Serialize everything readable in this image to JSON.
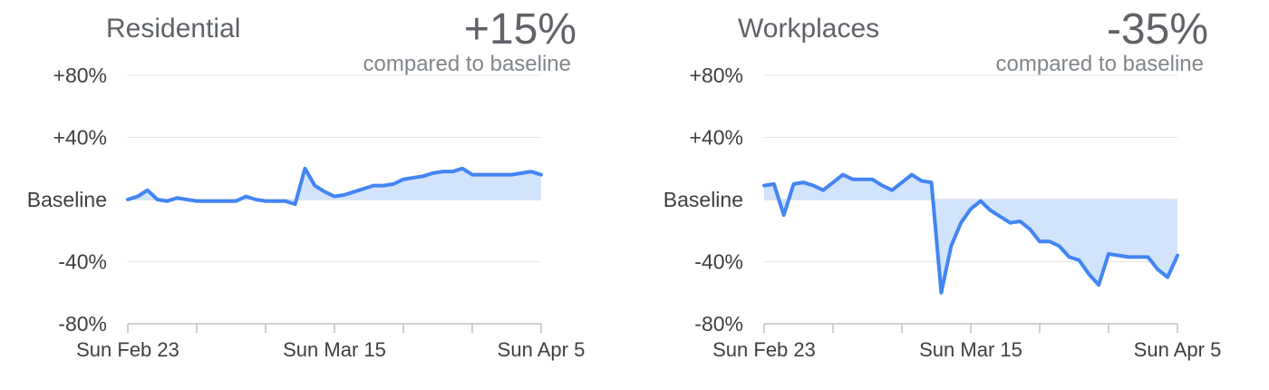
{
  "chart_data": [
    {
      "type": "area",
      "title": "Residential",
      "change": "+15%",
      "subtitle": "compared to baseline",
      "ylim": [
        -80,
        80
      ],
      "yticks": [
        {
          "value": 80,
          "label": "+80%"
        },
        {
          "value": 40,
          "label": "+40%"
        },
        {
          "value": 0,
          "label": "Baseline"
        },
        {
          "value": -40,
          "label": "-40%"
        },
        {
          "value": -80,
          "label": "-80%"
        }
      ],
      "xtick_labels": [
        {
          "index": 0,
          "label": "Sun Feb 23"
        },
        {
          "index": 21,
          "label": "Sun Mar 15"
        },
        {
          "index": 42,
          "label": "Sun Apr 5"
        }
      ],
      "xtick_marks": [
        0,
        7,
        14,
        21,
        28,
        35,
        42
      ],
      "grid": true,
      "color": "#4285f4",
      "fill_color": "#d2e3fc",
      "values": [
        0,
        2,
        6,
        0,
        -1,
        1,
        0,
        -1,
        -1,
        -1,
        -1,
        -1,
        2,
        0,
        -1,
        -1,
        -1,
        -3,
        20,
        9,
        5,
        2,
        3,
        5,
        7,
        9,
        9,
        10,
        13,
        14,
        15,
        17,
        18,
        18,
        20,
        16,
        16,
        16,
        16,
        16,
        17,
        18,
        16
      ]
    },
    {
      "type": "area",
      "title": "Workplaces",
      "change": "-35%",
      "subtitle": "compared to baseline",
      "ylim": [
        -80,
        80
      ],
      "yticks": [
        {
          "value": 80,
          "label": "+80%"
        },
        {
          "value": 40,
          "label": "+40%"
        },
        {
          "value": 0,
          "label": "Baseline"
        },
        {
          "value": -40,
          "label": "-40%"
        },
        {
          "value": -80,
          "label": "-80%"
        }
      ],
      "xtick_labels": [
        {
          "index": 0,
          "label": "Sun Feb 23"
        },
        {
          "index": 21,
          "label": "Sun Mar 15"
        },
        {
          "index": 42,
          "label": "Sun Apr 5"
        }
      ],
      "xtick_marks": [
        0,
        7,
        14,
        21,
        28,
        35,
        42
      ],
      "grid": true,
      "color": "#4285f4",
      "fill_color": "#d2e3fc",
      "values": [
        9,
        10,
        -10,
        10,
        11,
        9,
        6,
        11,
        16,
        13,
        13,
        13,
        9,
        6,
        11,
        16,
        12,
        11,
        -60,
        -30,
        -15,
        -6,
        -1,
        -7,
        -11,
        -15,
        -14,
        -19,
        -27,
        -27,
        -30,
        -37,
        -39,
        -48,
        -55,
        -35,
        -36,
        -37,
        -37,
        -37,
        -45,
        -50,
        -36
      ]
    }
  ]
}
